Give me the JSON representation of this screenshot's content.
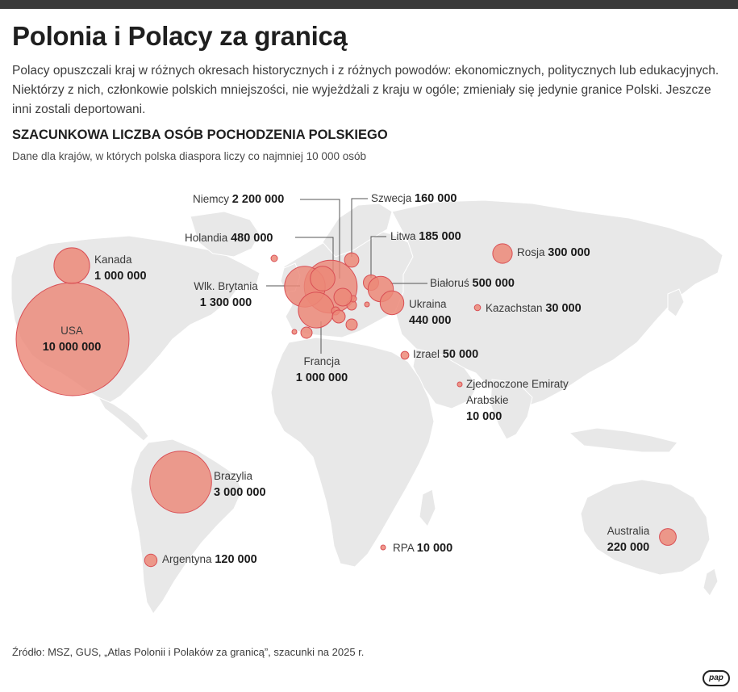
{
  "header": {
    "title": "Polonia i Polacy za granicą",
    "intro": "Polacy opuszczali kraj w różnych okresach historycznych i z różnych powodów: ekonomicznych, politycznych lub edukacyjnych. Niektórzy z nich, członkowie polskich mniejszości, nie wyjeżdżali z kraju w ogóle; zmieniały się jedynie granice Polski. Jeszcze inni zostali deportowani.",
    "subtitle": "SZACUNKOWA LICZBA OSÓB POCHODZENIA POLSKIEGO",
    "subnote": "Dane dla krajów, w których polska diaspora liczy co najmniej 10 000 osób"
  },
  "colors": {
    "bubble_fill": "#ec8878",
    "bubble_stroke": "#d94f55",
    "land": "#e8e8e8",
    "leader": "#555555"
  },
  "countries": [
    {
      "name": "USA",
      "value": "10 000 000"
    },
    {
      "name": "Kanada",
      "value": "1 000 000"
    },
    {
      "name": "Brazylia",
      "value": "3 000 000"
    },
    {
      "name": "Argentyna",
      "value": "120 000"
    },
    {
      "name": "Niemcy",
      "value": "2 200 000"
    },
    {
      "name": "Wlk. Brytania",
      "value": "1 300 000"
    },
    {
      "name": "Francja",
      "value": "1 000 000"
    },
    {
      "name": "Holandia",
      "value": "480 000"
    },
    {
      "name": "Szwecja",
      "value": "160 000"
    },
    {
      "name": "Litwa",
      "value": "185 000"
    },
    {
      "name": "Białoruś",
      "value": "500 000"
    },
    {
      "name": "Ukraina",
      "value": "440 000"
    },
    {
      "name": "Rosja",
      "value": "300 000"
    },
    {
      "name": "Kazachstan",
      "value": "30 000"
    },
    {
      "name": "Izrael",
      "value": "50 000"
    },
    {
      "name": "Zjednoczone Emiraty Arabskie",
      "value": "10 000"
    },
    {
      "name": "RPA",
      "value": "10 000"
    },
    {
      "name": "Australia",
      "value": "220 000"
    }
  ],
  "footer": {
    "source": "Źródło: MSZ, GUS, „Atlas Polonii i Polaków za granicą”, szacunki na 2025 r.",
    "logo": "pap"
  }
}
